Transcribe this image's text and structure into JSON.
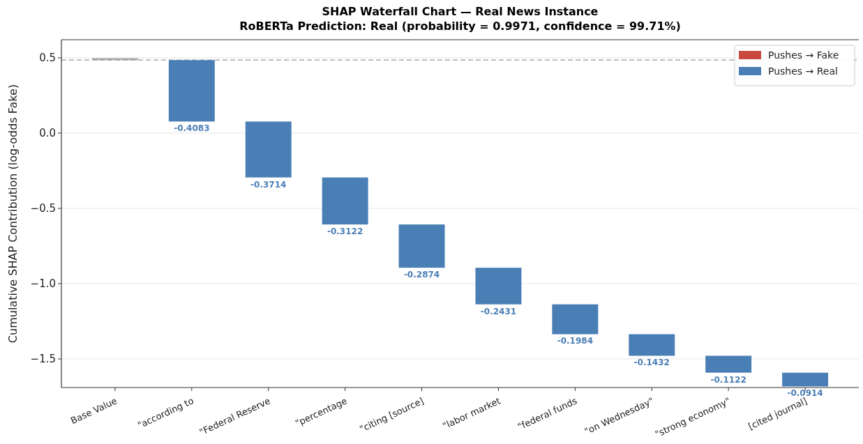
{
  "chart_data": {
    "type": "bar",
    "title": "SHAP Waterfall Chart — Real News Instance",
    "subtitle": "RoBERTa Prediction: Real (probability = 0.9971, confidence = 99.71%)",
    "ylabel": "Cumulative SHAP Contribution (log-odds Fake)",
    "categories": [
      "Base Value",
      "\"according to",
      "\"Federal Reserve",
      "\"percentage",
      "\"citing [source]",
      "\"labor market",
      "\"federal funds",
      "\"on Wednesday\"",
      "\"strong economy\"",
      "[cited journal]"
    ],
    "series": [
      {
        "color": "#a6a6a6",
        "values": [
          0.012,
          null,
          null,
          null,
          null,
          null,
          null,
          null,
          null,
          null
        ],
        "base": [
          0.485,
          null,
          null,
          null,
          null,
          null,
          null,
          null,
          null,
          null
        ]
      },
      {
        "name": "Pushes → Fake",
        "color": "#c8493f",
        "values": [
          null,
          null,
          null,
          null,
          null,
          null,
          null,
          null,
          null,
          null
        ]
      },
      {
        "name": "Pushes → Real",
        "color": "#4a7fb5",
        "base": [
          null,
          0.485,
          0.0767,
          -0.2947,
          -0.6069,
          -0.8943,
          -1.1374,
          -1.3358,
          -1.479,
          -1.5912
        ],
        "values": [
          null,
          -0.4083,
          -0.3714,
          -0.3122,
          -0.2874,
          -0.2431,
          -0.1984,
          -0.1432,
          -0.1122,
          -0.0914
        ],
        "value_labels": [
          null,
          "-0.4083",
          "-0.3714",
          "-0.3122",
          "-0.2874",
          "-0.2431",
          "-0.1984",
          "-0.1432",
          "-0.1122",
          "-0.0914"
        ]
      }
    ],
    "ylim": [
      -1.69,
      0.62
    ],
    "yticks": [
      {
        "value": -1.5,
        "label": "−1.5"
      },
      {
        "value": -1,
        "label": "−1.0"
      },
      {
        "value": -0.5,
        "label": "−0.5"
      },
      {
        "value": 0,
        "label": "0.0"
      },
      {
        "value": 0.5,
        "label": "0.5"
      }
    ],
    "grid": "y",
    "legend": "top right",
    "ref_lines": [
      {
        "axis": "y",
        "value": 0.485,
        "color": "#999999",
        "line_style": "dashed"
      }
    ]
  }
}
